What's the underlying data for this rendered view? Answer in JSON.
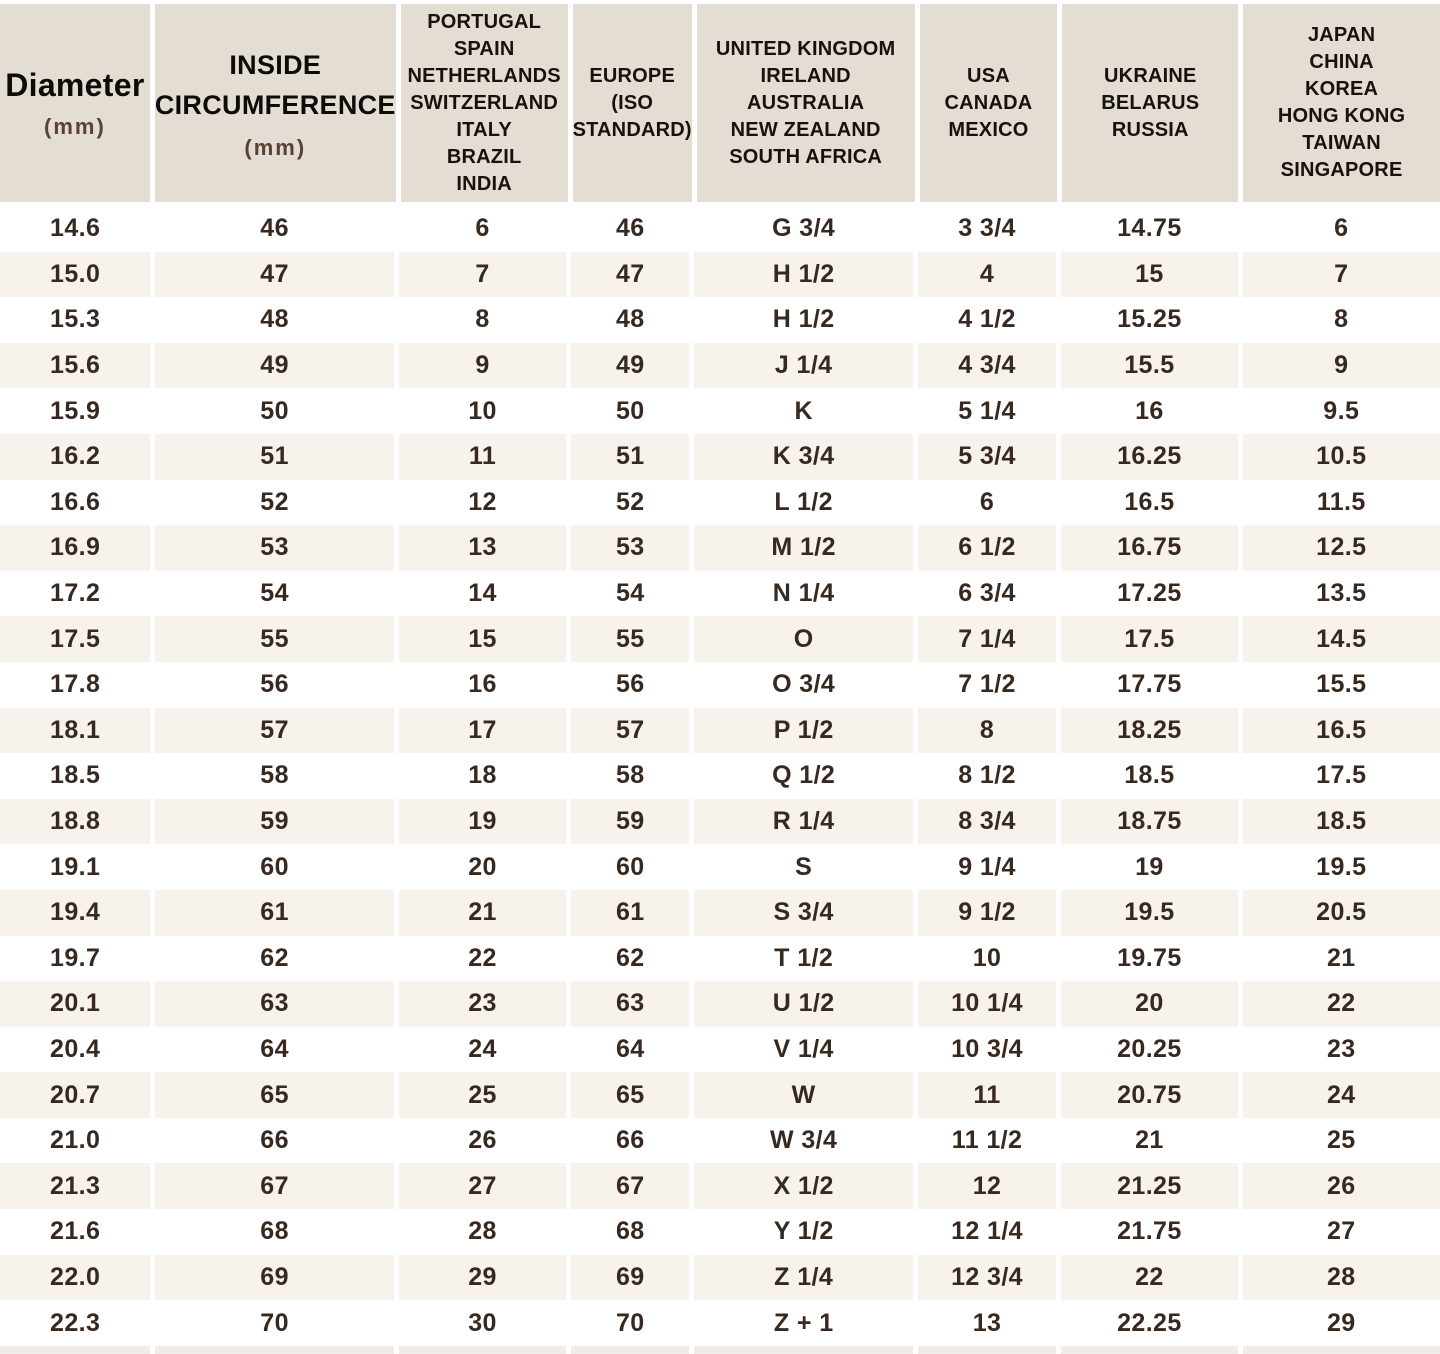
{
  "chart_data": {
    "type": "table",
    "title": "Ring size conversion chart",
    "colors": {
      "header_background": "#e4ddd3",
      "shaded_row_background": "#f7f2ec",
      "plain_row_background": "#ffffff",
      "text": "#37291f",
      "unit_text": "#5a4134"
    },
    "columns": [
      {
        "key": "diameter",
        "style": "xl",
        "lines": [
          "Diameter"
        ],
        "sub": "(mm)"
      },
      {
        "key": "inside-circumference",
        "style": "lg",
        "lines": [
          "INSIDE",
          "CIRCUMFERENCE"
        ],
        "sub": "(mm)"
      },
      {
        "key": "portugal-spain-netherlands-switzerland-italy-brazil-india",
        "style": "sm",
        "lines": [
          "PORTUGAL",
          "SPAIN",
          "NETHERLANDS",
          "SWITZERLAND",
          "ITALY",
          "BRAZIL",
          "INDIA"
        ],
        "sub": ""
      },
      {
        "key": "europe-iso-standard",
        "style": "sm",
        "lines": [
          "EUROPE",
          "(ISO",
          "STANDARD)"
        ],
        "sub": ""
      },
      {
        "key": "uk-ireland-australia-new-zealand-south-africa",
        "style": "sm",
        "lines": [
          "UNITED KINGDOM",
          "IRELAND",
          "AUSTRALIA",
          "NEW ZEALAND",
          "SOUTH AFRICA"
        ],
        "sub": ""
      },
      {
        "key": "usa-canada-mexico",
        "style": "sm",
        "lines": [
          "USA",
          "CANADA",
          "MEXICO"
        ],
        "sub": ""
      },
      {
        "key": "ukraine-belarus-russia",
        "style": "sm",
        "lines": [
          "UKRAINE",
          "BELARUS",
          "RUSSIA"
        ],
        "sub": ""
      },
      {
        "key": "japan-china-korea-hong-kong-taiwan-singapore",
        "style": "sm",
        "lines": [
          "JAPAN",
          "CHINA",
          "KOREA",
          "HONG KONG",
          "TAIWAN",
          "SINGAPORE"
        ],
        "sub": ""
      }
    ],
    "rows": [
      [
        "14.6",
        "46",
        "6",
        "46",
        "G 3/4",
        "3 3/4",
        "14.75",
        "6"
      ],
      [
        "15.0",
        "47",
        "7",
        "47",
        "H 1/2",
        "4",
        "15",
        "7"
      ],
      [
        "15.3",
        "48",
        "8",
        "48",
        "H 1/2",
        "4 1/2",
        "15.25",
        "8"
      ],
      [
        "15.6",
        "49",
        "9",
        "49",
        "J 1/4",
        "4 3/4",
        "15.5",
        "9"
      ],
      [
        "15.9",
        "50",
        "10",
        "50",
        "K",
        "5 1/4",
        "16",
        "9.5"
      ],
      [
        "16.2",
        "51",
        "11",
        "51",
        "K 3/4",
        "5 3/4",
        "16.25",
        "10.5"
      ],
      [
        "16.6",
        "52",
        "12",
        "52",
        "L 1/2",
        "6",
        "16.5",
        "11.5"
      ],
      [
        "16.9",
        "53",
        "13",
        "53",
        "M 1/2",
        "6 1/2",
        "16.75",
        "12.5"
      ],
      [
        "17.2",
        "54",
        "14",
        "54",
        "N 1/4",
        "6 3/4",
        "17.25",
        "13.5"
      ],
      [
        "17.5",
        "55",
        "15",
        "55",
        "O",
        "7 1/4",
        "17.5",
        "14.5"
      ],
      [
        "17.8",
        "56",
        "16",
        "56",
        "O 3/4",
        "7 1/2",
        "17.75",
        "15.5"
      ],
      [
        "18.1",
        "57",
        "17",
        "57",
        "P 1/2",
        "8",
        "18.25",
        "16.5"
      ],
      [
        "18.5",
        "58",
        "18",
        "58",
        "Q 1/2",
        "8 1/2",
        "18.5",
        "17.5"
      ],
      [
        "18.8",
        "59",
        "19",
        "59",
        "R 1/4",
        "8 3/4",
        "18.75",
        "18.5"
      ],
      [
        "19.1",
        "60",
        "20",
        "60",
        "S",
        "9 1/4",
        "19",
        "19.5"
      ],
      [
        "19.4",
        "61",
        "21",
        "61",
        "S 3/4",
        "9 1/2",
        "19.5",
        "20.5"
      ],
      [
        "19.7",
        "62",
        "22",
        "62",
        "T 1/2",
        "10",
        "19.75",
        "21"
      ],
      [
        "20.1",
        "63",
        "23",
        "63",
        "U 1/2",
        "10 1/4",
        "20",
        "22"
      ],
      [
        "20.4",
        "64",
        "24",
        "64",
        "V 1/4",
        "10 3/4",
        "20.25",
        "23"
      ],
      [
        "20.7",
        "65",
        "25",
        "65",
        "W",
        "11",
        "20.75",
        "24"
      ],
      [
        "21.0",
        "66",
        "26",
        "66",
        "W 3/4",
        "11 1/2",
        "21",
        "25"
      ],
      [
        "21.3",
        "67",
        "27",
        "67",
        "X 1/2",
        "12",
        "21.25",
        "26"
      ],
      [
        "21.6",
        "68",
        "28",
        "68",
        "Y 1/2",
        "12 1/4",
        "21.75",
        "27"
      ],
      [
        "22.0",
        "69",
        "29",
        "69",
        "Z 1/4",
        "12 3/4",
        "22",
        "28"
      ],
      [
        "22.3",
        "70",
        "30",
        "70",
        "Z + 1",
        "13",
        "22.25",
        "29"
      ]
    ]
  }
}
